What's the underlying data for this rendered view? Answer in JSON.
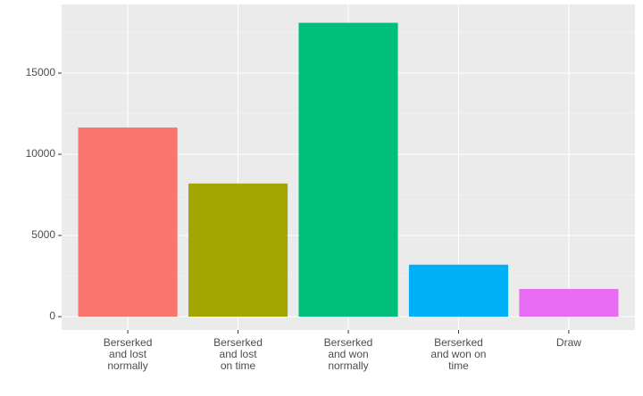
{
  "chart_data": {
    "type": "bar",
    "categories": [
      "Berserked\nand lost\nnormally",
      "Berserked\nand lost\non time",
      "Berserked\nand won\nnormally",
      "Berserked\nand won on\ntime",
      "Draw"
    ],
    "values": [
      11650,
      8200,
      18100,
      3200,
      1700
    ],
    "colors": [
      "#F8766D",
      "#A3A500",
      "#00BF7D",
      "#00B0F6",
      "#E76BF3"
    ],
    "ylim": [
      -824,
      19230
    ],
    "yticks": [
      0,
      5000,
      10000,
      15000
    ],
    "grid": true
  }
}
